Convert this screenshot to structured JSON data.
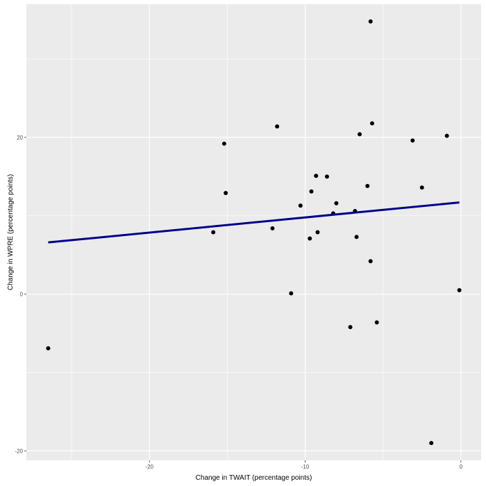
{
  "chart_data": {
    "type": "scatter",
    "title": "",
    "xlabel": "Change in TWAIT (percentage points)",
    "ylabel": "Change in WPRE (percentage points)",
    "xlim": [
      -27.9,
      1.3
    ],
    "ylim": [
      -21.2,
      37.0
    ],
    "x_ticks": [
      -20,
      -10,
      0
    ],
    "y_ticks": [
      -20,
      0,
      20
    ],
    "x_tick_labels": [
      "-20",
      "-10",
      "0"
    ],
    "y_tick_labels": [
      "-20",
      "0",
      "20"
    ],
    "grid": true,
    "panel_background": "#ebebeb",
    "grid_color": "#ffffff",
    "point_color": "#000000",
    "fit_line": {
      "x": [
        -26.5,
        -0.1
      ],
      "y": [
        6.6,
        11.7
      ],
      "color": "#00008b"
    },
    "points": [
      {
        "x": -26.5,
        "y": -6.9
      },
      {
        "x": -15.9,
        "y": 7.9
      },
      {
        "x": -15.2,
        "y": 19.2
      },
      {
        "x": -15.1,
        "y": 12.9
      },
      {
        "x": -12.1,
        "y": 8.4
      },
      {
        "x": -11.8,
        "y": 21.4
      },
      {
        "x": -10.9,
        "y": 0.1
      },
      {
        "x": -10.3,
        "y": 11.3
      },
      {
        "x": -9.7,
        "y": 7.1
      },
      {
        "x": -9.6,
        "y": 13.1
      },
      {
        "x": -9.3,
        "y": 15.1
      },
      {
        "x": -9.2,
        "y": 7.9
      },
      {
        "x": -8.6,
        "y": 15.0
      },
      {
        "x": -8.2,
        "y": 10.3
      },
      {
        "x": -8.0,
        "y": 11.6
      },
      {
        "x": -7.1,
        "y": -4.2
      },
      {
        "x": -6.8,
        "y": 10.6
      },
      {
        "x": -6.7,
        "y": 7.3
      },
      {
        "x": -6.5,
        "y": 20.4
      },
      {
        "x": -6.0,
        "y": 13.8
      },
      {
        "x": -5.8,
        "y": 4.2
      },
      {
        "x": -5.8,
        "y": 34.8
      },
      {
        "x": -5.7,
        "y": 21.8
      },
      {
        "x": -5.4,
        "y": -3.6
      },
      {
        "x": -3.1,
        "y": 19.6
      },
      {
        "x": -2.5,
        "y": 13.6
      },
      {
        "x": -1.9,
        "y": -19.0
      },
      {
        "x": -0.9,
        "y": 20.2
      },
      {
        "x": -0.1,
        "y": 0.5
      }
    ]
  }
}
